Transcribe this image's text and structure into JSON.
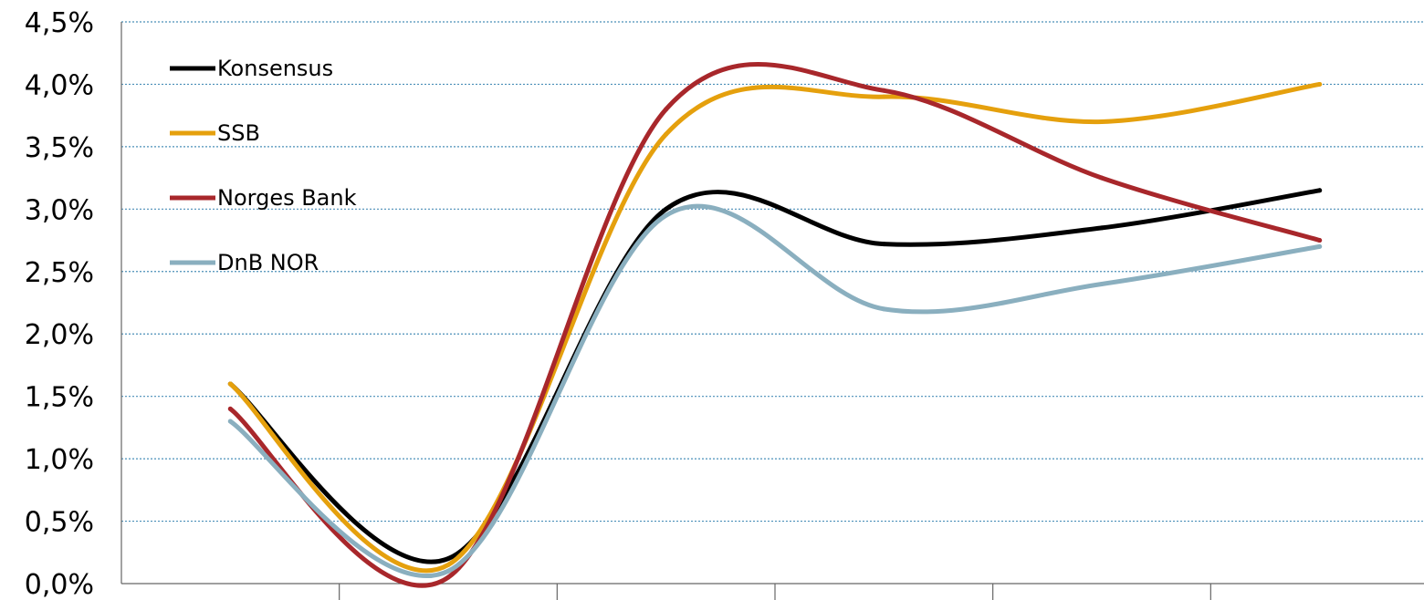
{
  "chart_data": {
    "type": "line",
    "title": "",
    "xlabel": "",
    "ylabel": "",
    "ylim": [
      0,
      4.5
    ],
    "ytick_labels": [
      "0,0%",
      "0,5%",
      "1,0%",
      "1,5%",
      "2,0%",
      "2,5%",
      "3,0%",
      "3,5%",
      "4,0%",
      "4,5%"
    ],
    "categories": [
      "",
      "",
      "",
      "",
      "",
      ""
    ],
    "grid": true,
    "legend_position": "top-left",
    "series": [
      {
        "name": "Konsensus",
        "color": "#000000",
        "values": [
          1.6,
          0.2,
          3.0,
          2.72,
          2.85,
          3.15
        ]
      },
      {
        "name": "SSB",
        "color": "#E5A00D",
        "values": [
          1.6,
          0.15,
          3.6,
          3.9,
          3.7,
          4.0
        ]
      },
      {
        "name": "Norges Bank",
        "color": "#A8272B",
        "values": [
          1.4,
          0.05,
          3.8,
          3.95,
          3.25,
          2.75
        ]
      },
      {
        "name": "DnB NOR",
        "color": "#8AAFBF",
        "values": [
          1.3,
          0.1,
          2.95,
          2.2,
          2.4,
          2.7
        ]
      }
    ]
  }
}
